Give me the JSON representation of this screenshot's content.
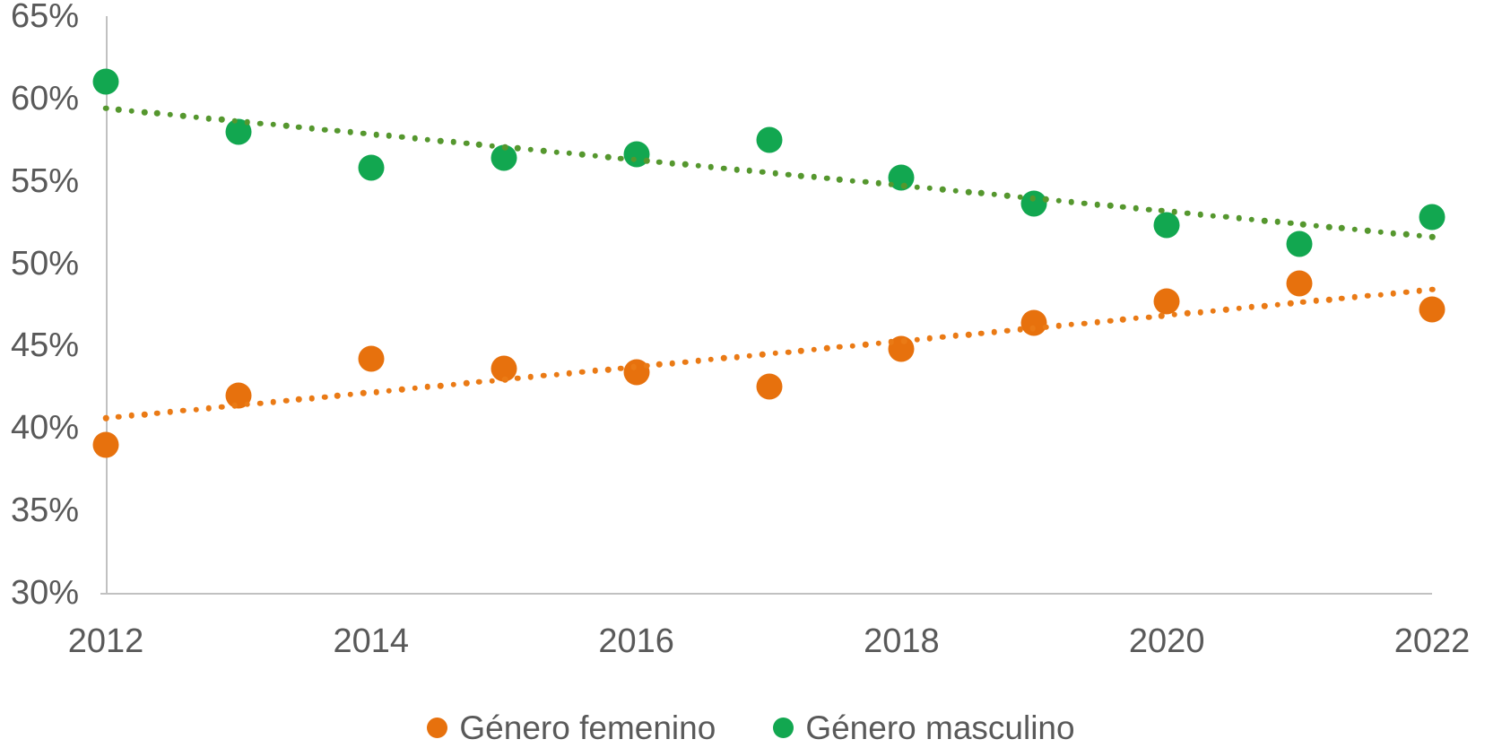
{
  "chart_data": {
    "type": "scatter",
    "title": "",
    "xlabel": "",
    "ylabel": "",
    "x": [
      2012,
      2013,
      2014,
      2015,
      2016,
      2017,
      2018,
      2019,
      2020,
      2021,
      2022
    ],
    "xlim": [
      2012,
      2022
    ],
    "ylim": [
      30,
      65
    ],
    "grid": false,
    "legend_position": "bottom",
    "xticks": [
      2012,
      2014,
      2016,
      2018,
      2020,
      2022
    ],
    "xtick_labels": [
      "2012",
      "2014",
      "2016",
      "2018",
      "2020",
      "2022"
    ],
    "yticks": [
      65,
      60,
      55,
      50,
      45,
      40,
      35,
      30
    ],
    "ytick_labels": [
      "65%",
      "60%",
      "55%",
      "50%",
      "45%",
      "40%",
      "35%",
      "30%"
    ],
    "series": [
      {
        "name": "Género femenino",
        "color": "#E7710D",
        "trend_color": "#EA7A15",
        "values": [
          39.0,
          42.0,
          44.2,
          43.6,
          43.4,
          42.5,
          44.8,
          46.4,
          47.7,
          48.8,
          47.2
        ],
        "trendline": {
          "type": "linear",
          "style": "dotted",
          "start_value": 40.6,
          "end_value": 48.4
        }
      },
      {
        "name": "Género masculino",
        "color": "#12A750",
        "trend_color": "#55972E",
        "values": [
          61.0,
          58.0,
          55.8,
          56.4,
          56.6,
          57.5,
          55.2,
          53.6,
          52.3,
          51.2,
          52.8
        ],
        "trendline": {
          "type": "linear",
          "style": "dotted",
          "start_value": 59.4,
          "end_value": 51.6
        }
      }
    ]
  },
  "legend": {
    "items": [
      {
        "label": "Género femenino",
        "color": "#E7710D"
      },
      {
        "label": "Género masculino",
        "color": "#12A750"
      }
    ]
  },
  "colors": {
    "background": "#FFFFFF",
    "axis_line": "#C1C1C1",
    "tick_label": "#595959"
  }
}
